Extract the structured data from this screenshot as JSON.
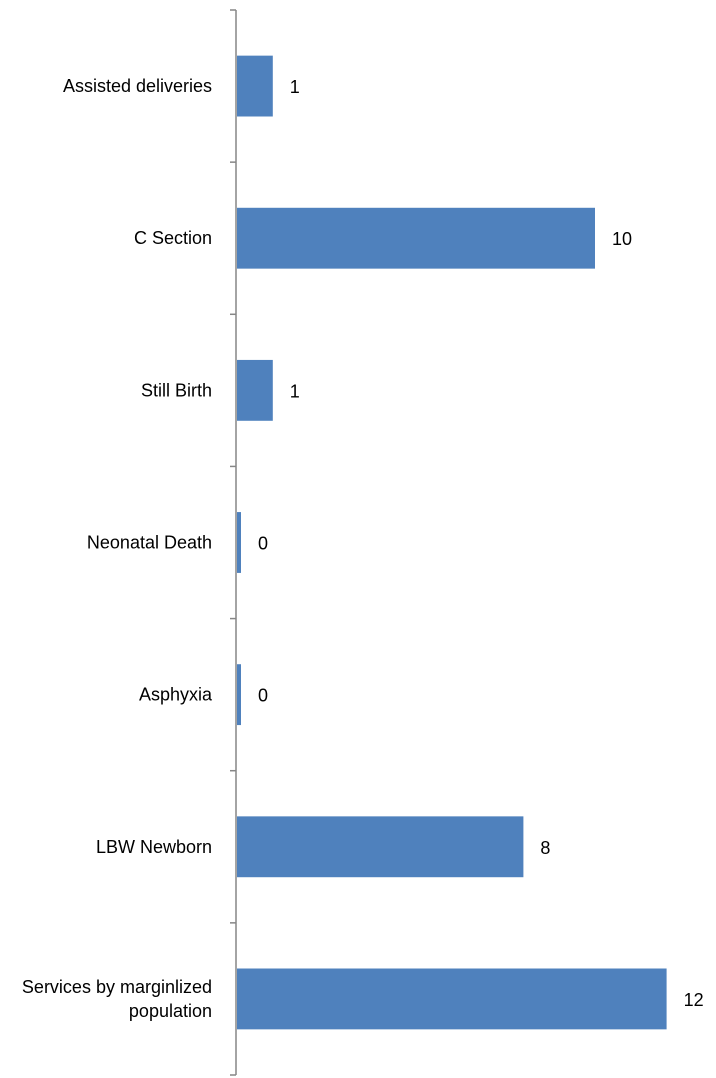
{
  "chart_data": {
    "type": "bar",
    "orientation": "horizontal",
    "title": "",
    "xlabel": "",
    "ylabel": "",
    "categories": [
      "Assisted deliveries",
      "C Section",
      "Still Birth",
      "Neonatal Death",
      "Asphyxia",
      "LBW Newborn",
      "Services by marginlized population"
    ],
    "values": [
      1,
      10,
      1,
      0,
      0,
      8,
      12
    ],
    "data_labels": [
      "1",
      "10",
      "1",
      "0",
      "0",
      "8",
      "12"
    ],
    "xlim": [
      0,
      12
    ],
    "grid": false,
    "legend": "none",
    "bar_color": "#4F81BD",
    "axis_color": "#868686"
  }
}
